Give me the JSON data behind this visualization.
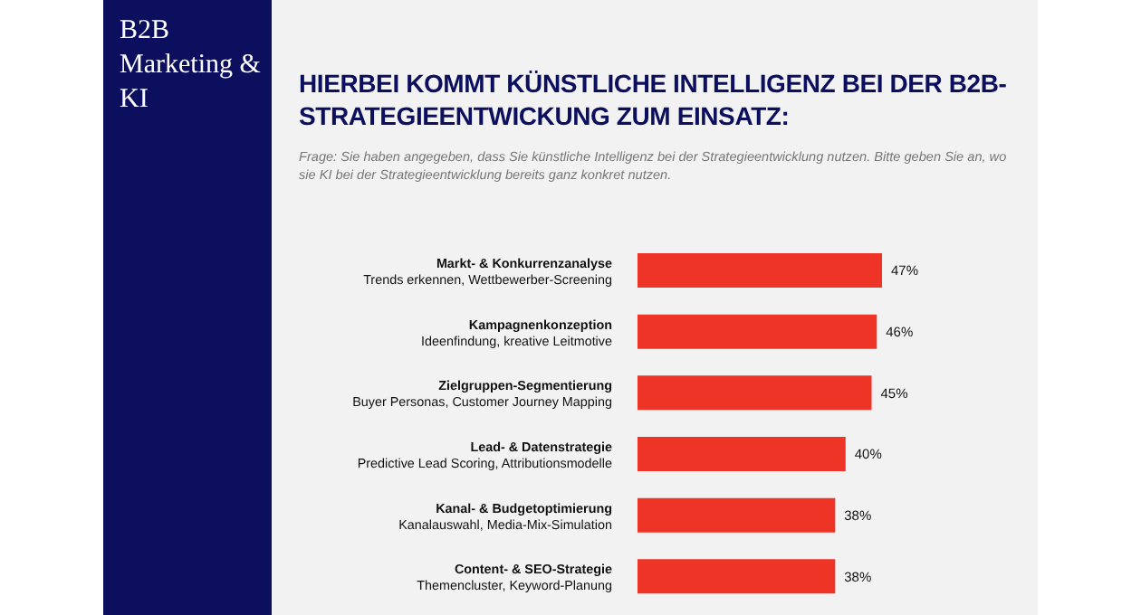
{
  "chart_data": {
    "type": "bar",
    "orientation": "horizontal",
    "title": "HIERBEI KOMMT KÜNSTLICHE INTELLIGENZ BEI DER B2B-STRATEGIEENTWICKUNG ZUM EINSATZ:",
    "subtitle": "Frage: Sie haben angegeben, dass Sie künstliche Intelligenz bei der Strategieentwicklung nutzen. Bitte geben Sie an, wo sie KI bei der Strategieentwicklung bereits ganz konkret nutzen.",
    "annotations": [
      "B2B Marketing & KI"
    ],
    "categories": [
      "Markt- & Konkurrenzanalyse\nTrends erkennen, Wettbewerber-Screening",
      "Kampagnenkonzeption\nIdeenfindung, kreative Leitmotive",
      "Zielgruppen-Segmentierung\nBuyer Personas, Customer Journey Mapping",
      "Lead- & Datenstrategie\nPredictive Lead Scoring, Attributionsmodelle",
      "Kanal- & Budgetoptimierung\nKanalauswahl, Media-Mix-Simulation",
      "Content- & SEO-Strategie\nThemencluster, Keyword-Planung"
    ],
    "values": [
      47,
      46,
      45,
      40,
      38,
      38
    ],
    "value_labels": [
      "47%",
      "46%",
      "45%",
      "40%",
      "38%",
      "38%"
    ],
    "color": "#ee3327",
    "tick_labels": false
  }
}
